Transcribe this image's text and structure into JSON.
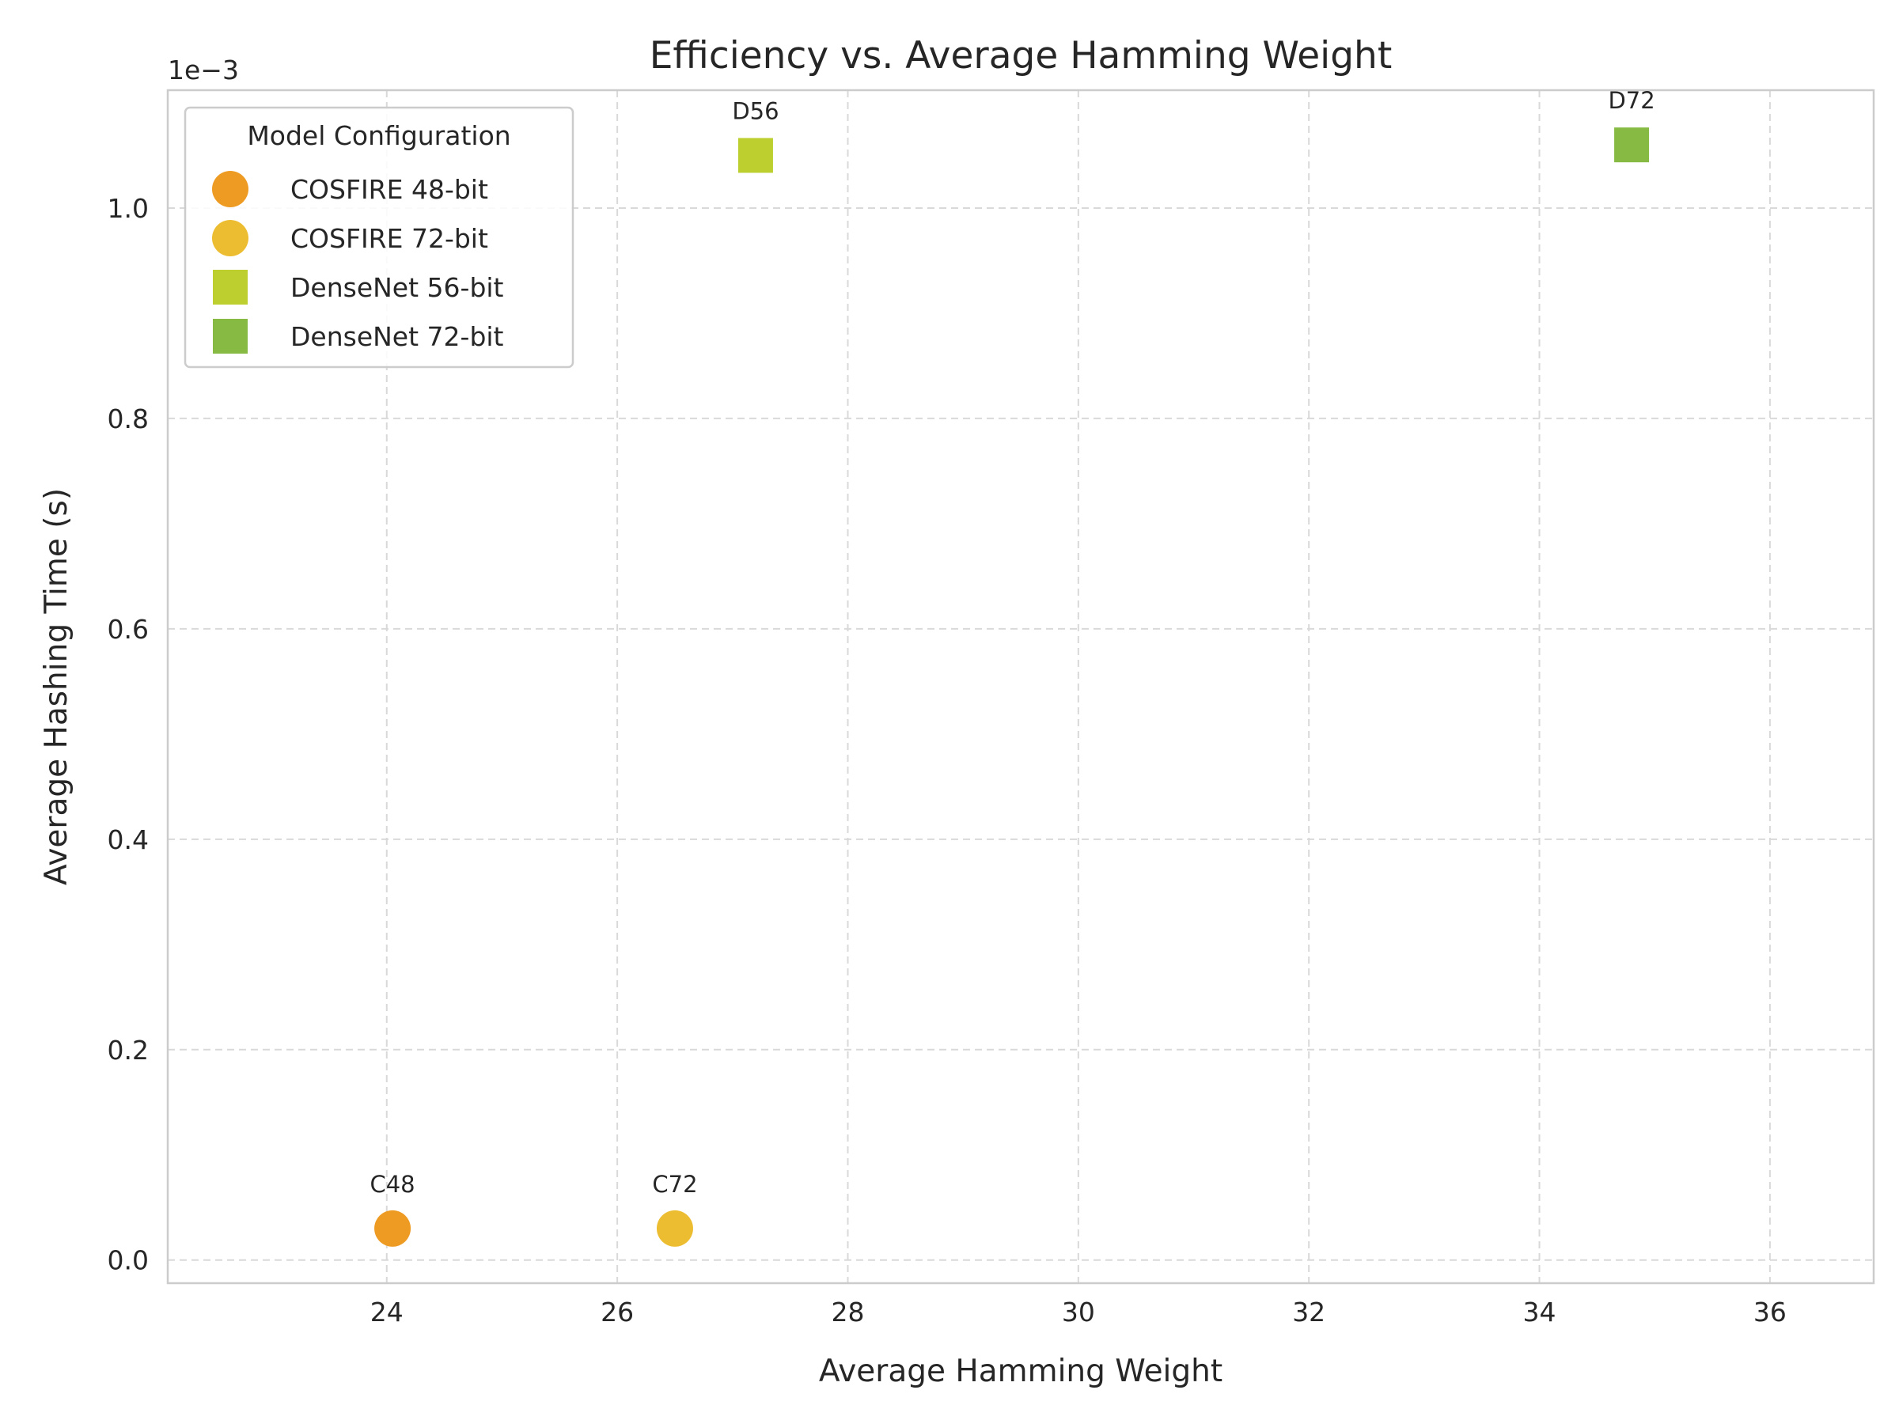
{
  "chart_data": {
    "type": "scatter",
    "title": "Efficiency vs. Average Hamming Weight",
    "xlabel": "Average Hamming Weight",
    "ylabel": "Average Hashing Time (s)",
    "y_offset_label": "1e−3",
    "xlim": [
      22.1,
      36.9
    ],
    "ylim": [
      -2.2e-05,
      0.001112
    ],
    "x_ticks": [
      24,
      26,
      28,
      30,
      32,
      34,
      36
    ],
    "x_tick_labels": [
      "24",
      "26",
      "28",
      "30",
      "32",
      "34",
      "36"
    ],
    "y_ticks": [
      0,
      0.0002,
      0.0004,
      0.0006,
      0.0008,
      0.001
    ],
    "y_tick_labels": [
      "0.0",
      "0.2",
      "0.4",
      "0.6",
      "0.8",
      "1.0"
    ],
    "grid": true,
    "legend": {
      "title": "Model Configuration",
      "placement": "top-left"
    },
    "series": [
      {
        "name": "COSFIRE 48-bit",
        "marker": "circle",
        "color": "#ee9b23",
        "points": [
          {
            "x": 24.05,
            "y": 3e-05,
            "label": "C48"
          }
        ]
      },
      {
        "name": "COSFIRE 72-bit",
        "marker": "circle",
        "color": "#edbd31",
        "points": [
          {
            "x": 26.5,
            "y": 3e-05,
            "label": "C72"
          }
        ]
      },
      {
        "name": "DenseNet 56-bit",
        "marker": "square",
        "color": "#bccf2e",
        "points": [
          {
            "x": 27.2,
            "y": 0.00105,
            "label": "D56"
          }
        ]
      },
      {
        "name": "DenseNet 72-bit",
        "marker": "square",
        "color": "#86ba42",
        "points": [
          {
            "x": 34.8,
            "y": 0.00106,
            "label": "D72"
          }
        ]
      }
    ]
  }
}
